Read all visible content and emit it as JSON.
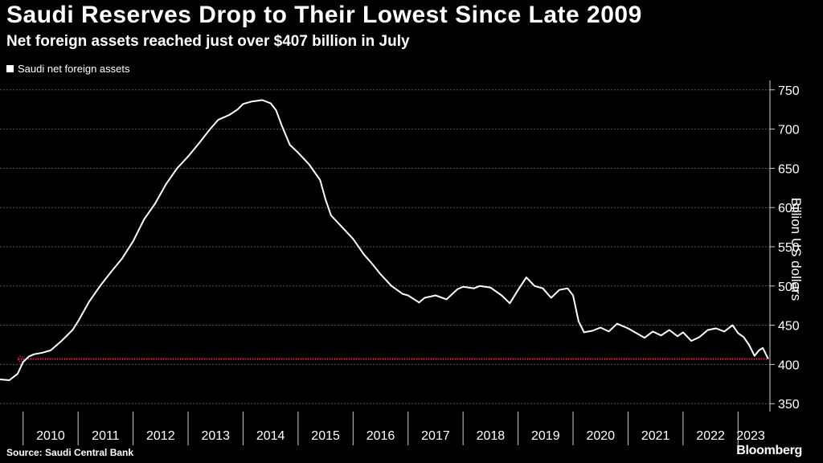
{
  "chart_data": {
    "type": "line",
    "title": "Saudi Reserves Drop to Their Lowest Since Late 2009",
    "subtitle": "Net foreign assets reached just over $407 billion in July",
    "ylabel": "Billion US dollars",
    "xlabel": "",
    "series": [
      {
        "name": "Saudi net foreign assets",
        "points": [
          [
            2009.58,
            381
          ],
          [
            2009.75,
            380
          ],
          [
            2009.9,
            388
          ],
          [
            2010.0,
            403
          ],
          [
            2010.1,
            410
          ],
          [
            2010.2,
            413
          ],
          [
            2010.35,
            415
          ],
          [
            2010.5,
            418
          ],
          [
            2010.7,
            430
          ],
          [
            2010.9,
            444
          ],
          [
            2011.0,
            455
          ],
          [
            2011.2,
            480
          ],
          [
            2011.4,
            500
          ],
          [
            2011.6,
            518
          ],
          [
            2011.8,
            535
          ],
          [
            2012.0,
            557
          ],
          [
            2012.2,
            585
          ],
          [
            2012.4,
            605
          ],
          [
            2012.6,
            630
          ],
          [
            2012.8,
            650
          ],
          [
            2013.0,
            665
          ],
          [
            2013.2,
            682
          ],
          [
            2013.4,
            700
          ],
          [
            2013.55,
            712
          ],
          [
            2013.75,
            718
          ],
          [
            2013.9,
            725
          ],
          [
            2014.0,
            732
          ],
          [
            2014.15,
            735
          ],
          [
            2014.35,
            737
          ],
          [
            2014.5,
            733
          ],
          [
            2014.6,
            724
          ],
          [
            2014.7,
            705
          ],
          [
            2014.85,
            680
          ],
          [
            2015.0,
            670
          ],
          [
            2015.2,
            655
          ],
          [
            2015.4,
            635
          ],
          [
            2015.5,
            610
          ],
          [
            2015.6,
            590
          ],
          [
            2015.8,
            575
          ],
          [
            2016.0,
            560
          ],
          [
            2016.2,
            540
          ],
          [
            2016.35,
            528
          ],
          [
            2016.5,
            515
          ],
          [
            2016.7,
            500
          ],
          [
            2016.9,
            490
          ],
          [
            2017.0,
            488
          ],
          [
            2017.2,
            479
          ],
          [
            2017.3,
            485
          ],
          [
            2017.5,
            488
          ],
          [
            2017.7,
            483
          ],
          [
            2017.9,
            496
          ],
          [
            2018.0,
            499
          ],
          [
            2018.2,
            497
          ],
          [
            2018.3,
            500
          ],
          [
            2018.5,
            498
          ],
          [
            2018.7,
            488
          ],
          [
            2018.85,
            478
          ],
          [
            2019.0,
            495
          ],
          [
            2019.15,
            511
          ],
          [
            2019.3,
            500
          ],
          [
            2019.45,
            497
          ],
          [
            2019.6,
            485
          ],
          [
            2019.75,
            495
          ],
          [
            2019.9,
            497
          ],
          [
            2020.0,
            488
          ],
          [
            2020.1,
            455
          ],
          [
            2020.2,
            441
          ],
          [
            2020.35,
            443
          ],
          [
            2020.5,
            447
          ],
          [
            2020.65,
            442
          ],
          [
            2020.8,
            452
          ],
          [
            2021.0,
            446
          ],
          [
            2021.15,
            440
          ],
          [
            2021.3,
            434
          ],
          [
            2021.45,
            442
          ],
          [
            2021.6,
            437
          ],
          [
            2021.75,
            444
          ],
          [
            2021.9,
            436
          ],
          [
            2022.0,
            441
          ],
          [
            2022.15,
            430
          ],
          [
            2022.3,
            435
          ],
          [
            2022.45,
            444
          ],
          [
            2022.6,
            446
          ],
          [
            2022.75,
            442
          ],
          [
            2022.9,
            450
          ],
          [
            2023.0,
            440
          ],
          [
            2023.1,
            435
          ],
          [
            2023.2,
            425
          ],
          [
            2023.3,
            411
          ],
          [
            2023.38,
            418
          ],
          [
            2023.45,
            421
          ],
          [
            2023.55,
            407
          ]
        ]
      }
    ],
    "reference_line": {
      "value": 407
    },
    "xlim": [
      2009.58,
      2023.58
    ],
    "ylim": [
      340,
      760
    ],
    "yticks": [
      350,
      400,
      450,
      500,
      550,
      600,
      650,
      700,
      750
    ],
    "xticks": [
      "2010",
      "2011",
      "2012",
      "2013",
      "2014",
      "2015",
      "2016",
      "2017",
      "2018",
      "2019",
      "2020",
      "2021",
      "2022",
      "2023"
    ],
    "grid": true,
    "legend": "top-left",
    "colors": {
      "line": "#ffffff",
      "grid": "#5a5a5a",
      "reference": "#e8254b",
      "background": "#000000"
    }
  },
  "labels": {
    "title": "Saudi Reserves Drop to Their Lowest Since Late 2009",
    "subtitle": "Net foreign assets reached just over $407 billion in July",
    "legend": "Saudi net foreign assets",
    "ylabel": "Billion US dollars",
    "source": "Source: Saudi Central Bank",
    "brand": "Bloomberg"
  }
}
